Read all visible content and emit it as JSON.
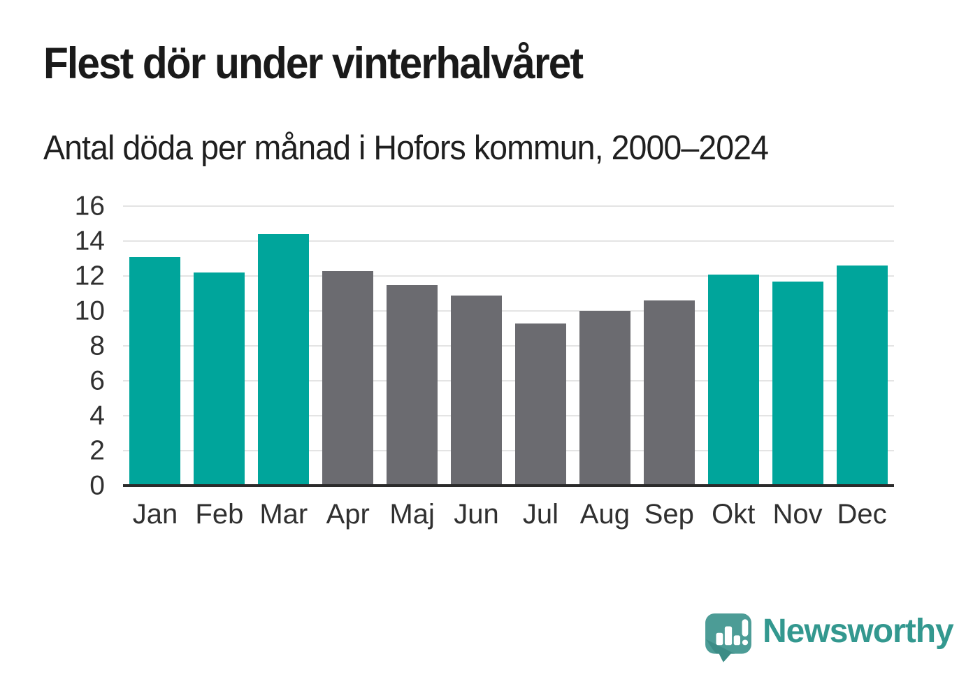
{
  "header": {
    "title": "Flest dör under vinterhalvåret",
    "subtitle": "Antal döda per månad i Hofors kommun, 2000–2024"
  },
  "chart_data": {
    "type": "bar",
    "title": "Flest dör under vinterhalvåret",
    "subtitle": "Antal döda per månad i Hofors kommun, 2000–2024",
    "categories": [
      "Jan",
      "Feb",
      "Mar",
      "Apr",
      "Maj",
      "Jun",
      "Jul",
      "Aug",
      "Sep",
      "Okt",
      "Nov",
      "Dec"
    ],
    "values": [
      13.1,
      12.2,
      14.4,
      12.3,
      11.5,
      10.9,
      9.3,
      10.0,
      10.6,
      12.1,
      11.7,
      12.6
    ],
    "bar_colors": [
      "#00a59b",
      "#00a59b",
      "#00a59b",
      "#6b6b70",
      "#6b6b70",
      "#6b6b70",
      "#6b6b70",
      "#6b6b70",
      "#6b6b70",
      "#00a59b",
      "#00a59b",
      "#00a59b"
    ],
    "xlabel": "",
    "ylabel": "",
    "ylim": [
      0,
      16
    ],
    "yticks": [
      0,
      2,
      4,
      6,
      8,
      10,
      12,
      14,
      16
    ],
    "grid": true,
    "legend": false
  },
  "colors": {
    "highlight_teal": "#00a59b",
    "muted_gray": "#6b6b70",
    "gridline": "#e4e4e4",
    "axis_line": "#2b2b2b",
    "axis_text": "#303030",
    "title_text": "#1a1a1a",
    "brand_teal": "#33988f",
    "brand_icon_teal": "#4c9c96",
    "brand_icon_shade": "#3c8c86"
  },
  "branding": {
    "name": "Newsworthy"
  }
}
